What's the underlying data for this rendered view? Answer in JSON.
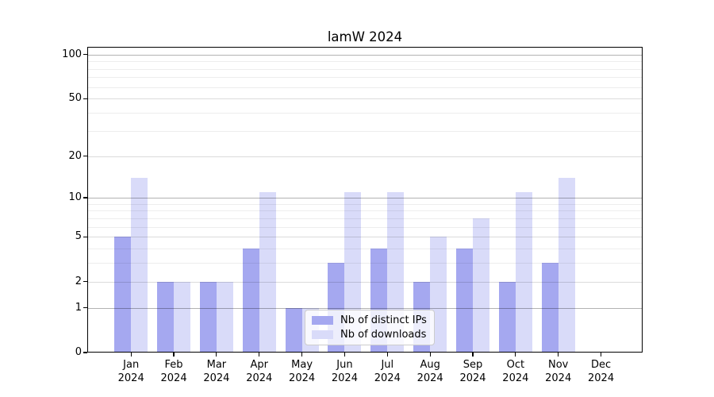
{
  "figure_title": "lamW 2024",
  "chart_data": {
    "type": "bar",
    "title": "lamW 2024",
    "categories": [
      "Jan",
      "Feb",
      "Mar",
      "Apr",
      "May",
      "Jun",
      "Jul",
      "Aug",
      "Sep",
      "Oct",
      "Nov",
      "Dec"
    ],
    "year_label": "2024",
    "series": [
      {
        "name": "Nb of distinct IPs",
        "color": "#a5a8f0",
        "values": [
          5,
          2,
          2,
          4,
          1,
          3,
          4,
          2,
          4,
          2,
          3,
          0
        ]
      },
      {
        "name": "Nb of downloads",
        "color": "#d9dbf9",
        "values": [
          14,
          2,
          2,
          11,
          1,
          11,
          11,
          5,
          7,
          11,
          14,
          0
        ]
      }
    ],
    "scale": "log1p",
    "ylim": [
      0,
      113
    ],
    "y_ticks": [
      0,
      1,
      2,
      5,
      10,
      20,
      50,
      100
    ],
    "y_gridlines_major": [
      1,
      10,
      100
    ],
    "y_gridlines_mid": [
      2,
      5,
      20,
      50
    ],
    "y_gridlines_minor": [
      3,
      4,
      6,
      7,
      8,
      9,
      30,
      40,
      60,
      70,
      80,
      90
    ],
    "grid": true,
    "legend_position": "lower center",
    "axis_color": "#000000",
    "background_color": "#ffffff"
  }
}
